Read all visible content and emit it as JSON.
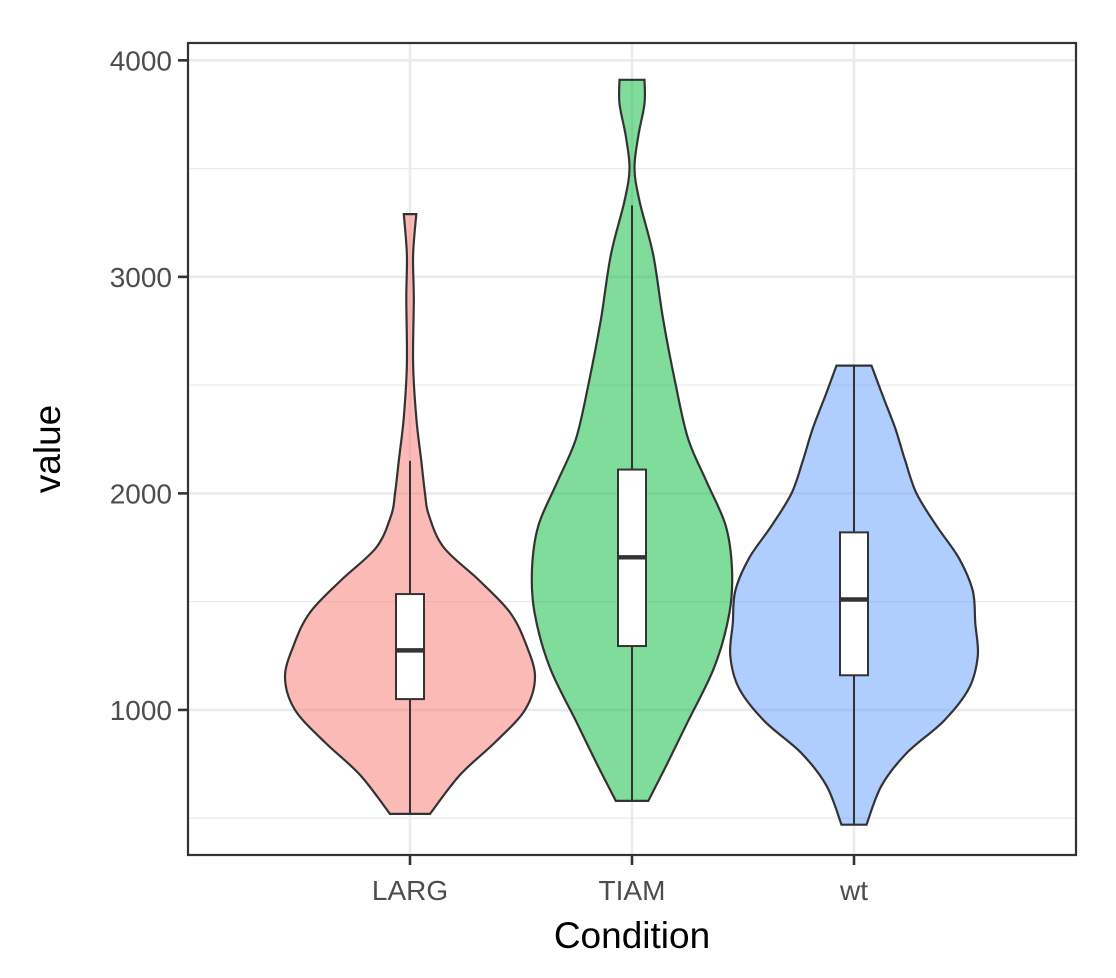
{
  "chart_data": {
    "type": "violin",
    "title": "",
    "xlabel": "Condition",
    "ylabel": "value",
    "ylim": [
      330,
      4080
    ],
    "y_ticks": [
      1000,
      2000,
      3000,
      4000
    ],
    "y_minor_ticks": [
      500,
      1500,
      2500,
      3500
    ],
    "grid": true,
    "legend": "none",
    "categories": [
      "LARG",
      "TIAM",
      "wt"
    ],
    "series": [
      {
        "category": "LARG",
        "color": "#F8766D",
        "min": 520,
        "max": 3290,
        "box": {
          "lower_whisker": 520,
          "q1": 1050,
          "median": 1275,
          "q3": 1535,
          "upper_whisker": 2150
        },
        "density": [
          [
            520,
            0.16
          ],
          [
            700,
            0.4
          ],
          [
            850,
            0.68
          ],
          [
            1000,
            0.92
          ],
          [
            1150,
            1.0
          ],
          [
            1300,
            0.93
          ],
          [
            1450,
            0.8
          ],
          [
            1600,
            0.55
          ],
          [
            1750,
            0.27
          ],
          [
            1900,
            0.15
          ],
          [
            2000,
            0.12
          ],
          [
            2150,
            0.09
          ],
          [
            2350,
            0.05
          ],
          [
            2600,
            0.025
          ],
          [
            2900,
            0.03
          ],
          [
            3100,
            0.025
          ],
          [
            3290,
            0.05
          ]
        ]
      },
      {
        "category": "TIAM",
        "color": "#00BA38",
        "min": 580,
        "max": 3910,
        "box": {
          "lower_whisker": 580,
          "q1": 1295,
          "median": 1705,
          "q3": 2110,
          "upper_whisker": 3330
        },
        "density": [
          [
            580,
            0.13
          ],
          [
            750,
            0.28
          ],
          [
            950,
            0.45
          ],
          [
            1200,
            0.66
          ],
          [
            1450,
            0.78
          ],
          [
            1650,
            0.8
          ],
          [
            1850,
            0.75
          ],
          [
            2050,
            0.6
          ],
          [
            2250,
            0.45
          ],
          [
            2500,
            0.35
          ],
          [
            2800,
            0.25
          ],
          [
            3100,
            0.17
          ],
          [
            3350,
            0.06
          ],
          [
            3500,
            0.02
          ],
          [
            3650,
            0.05
          ],
          [
            3800,
            0.1
          ],
          [
            3910,
            0.1
          ]
        ]
      },
      {
        "category": "wt",
        "color": "#619CFF",
        "min": 470,
        "max": 2590,
        "box": {
          "lower_whisker": 470,
          "q1": 1160,
          "median": 1510,
          "q3": 1820,
          "upper_whisker": 2590
        },
        "density": [
          [
            470,
            0.1
          ],
          [
            650,
            0.22
          ],
          [
            800,
            0.42
          ],
          [
            950,
            0.72
          ],
          [
            1100,
            0.92
          ],
          [
            1250,
            0.99
          ],
          [
            1400,
            0.97
          ],
          [
            1550,
            0.95
          ],
          [
            1700,
            0.84
          ],
          [
            1850,
            0.66
          ],
          [
            2000,
            0.5
          ],
          [
            2150,
            0.41
          ],
          [
            2300,
            0.33
          ],
          [
            2450,
            0.23
          ],
          [
            2590,
            0.14
          ]
        ]
      }
    ]
  }
}
